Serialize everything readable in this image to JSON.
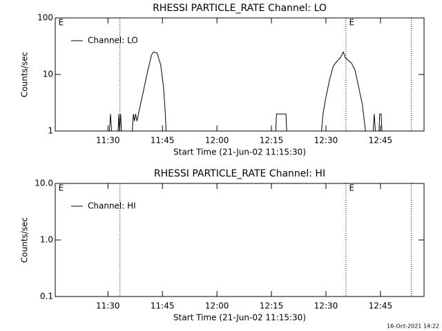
{
  "chart_data": [
    {
      "type": "line",
      "title": "RHESSI PARTICLE_RATE Channel: LO",
      "x_label": "Start Time (21-Jun-02 11:15:30)",
      "y_label": "Counts/sec",
      "log_y": true,
      "legend": "upper-left",
      "xlim": [
        675.5,
        777
      ],
      "xticks": [
        {
          "value": 690,
          "label": "11:30"
        },
        {
          "value": 705,
          "label": "11:45"
        },
        {
          "value": 720,
          "label": "12:00"
        },
        {
          "value": 735,
          "label": "12:15"
        },
        {
          "value": 750,
          "label": "12:30"
        },
        {
          "value": 765,
          "label": "12:45"
        }
      ],
      "ylim": [
        1,
        100
      ],
      "yticks": [
        1,
        10,
        100
      ],
      "vlines": [
        693.3,
        755.5,
        773.5
      ],
      "annotations": [
        {
          "text": "E",
          "x": 676
        },
        {
          "text": "E",
          "x": 756
        }
      ],
      "series": [
        {
          "name": "Channel: LO",
          "color": "#000000",
          "x": [
            675.5,
            690.4,
            690.7,
            691.0,
            692.8,
            693.0,
            693.2,
            693.5,
            693.7,
            694.0,
            696.7,
            697.0,
            697.3,
            697.6,
            698.0,
            698.4,
            699.0,
            700.0,
            701.0,
            702.0,
            702.5,
            703.5,
            704.5,
            705.3,
            705.8,
            706.0,
            736.2,
            736.4,
            739.0,
            739.2,
            748.8,
            749.2,
            750.0,
            751.0,
            752.0,
            753.0,
            754.0,
            754.8,
            755.3,
            756.0,
            757.0,
            758.0,
            759.0,
            760.0,
            760.9,
            763.0,
            763.3,
            763.6,
            764.6,
            764.8,
            765.2,
            765.4,
            777.0
          ],
          "values": [
            1,
            1,
            2,
            1,
            1,
            2,
            1,
            2,
            1,
            1,
            1,
            2,
            1.5,
            2,
            1.5,
            2,
            3,
            6,
            12,
            22,
            25,
            24,
            15,
            6,
            2,
            1,
            1,
            2,
            2,
            1,
            1,
            2,
            4,
            8,
            14,
            17,
            20,
            25,
            20,
            18,
            16,
            12,
            6,
            3,
            1,
            1,
            2,
            1,
            1,
            2,
            2,
            1,
            1
          ]
        }
      ]
    },
    {
      "type": "line",
      "title": "RHESSI PARTICLE_RATE Channel: HI",
      "x_label": "Start Time (21-Jun-02 11:15:30)",
      "y_label": "Counts/sec",
      "log_y": true,
      "legend": "upper-left",
      "xlim": [
        675.5,
        777
      ],
      "xticks": [
        {
          "value": 690,
          "label": "11:30"
        },
        {
          "value": 705,
          "label": "11:45"
        },
        {
          "value": 720,
          "label": "12:00"
        },
        {
          "value": 735,
          "label": "12:15"
        },
        {
          "value": 750,
          "label": "12:30"
        },
        {
          "value": 765,
          "label": "12:45"
        }
      ],
      "ylim": [
        0.1,
        10
      ],
      "yticks": [
        0.1,
        {
          "value": 1,
          "label": "1.0"
        },
        {
          "value": 10,
          "label": "10.0"
        }
      ],
      "vlines": [
        693.3,
        755.5,
        773.5
      ],
      "annotations": [
        {
          "text": "E",
          "x": 676
        },
        {
          "text": "E",
          "x": 756
        }
      ],
      "series": [
        {
          "name": "Channel: HI",
          "color": "#000000",
          "x": [],
          "values": []
        }
      ]
    }
  ],
  "footer": "16-Oct-2021 14:22"
}
